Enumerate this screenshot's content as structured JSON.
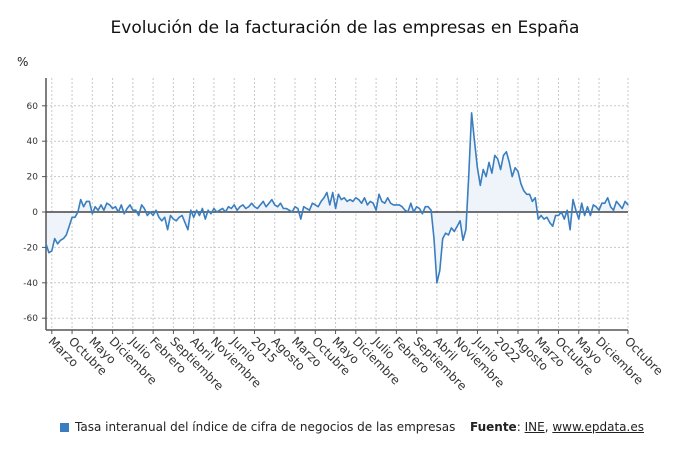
{
  "chart_data": {
    "type": "area",
    "title": "Evolución de la facturación de las empresas en España",
    "ylabel": "%",
    "xlabel": "",
    "ylim": [
      -66,
      76
    ],
    "yticks": [
      60,
      40,
      20,
      0,
      -20,
      -40,
      -60
    ],
    "grid": true,
    "legend_position": "bottom",
    "x_start": "2009-01",
    "frequency": "monthly",
    "xticks": [
      {
        "date": "2009-03",
        "label": "Marzo"
      },
      {
        "date": "2009-10",
        "label": "Octubre"
      },
      {
        "date": "2010-05",
        "label": "Mayo"
      },
      {
        "date": "2010-12",
        "label": "Diciembre"
      },
      {
        "date": "2011-07",
        "label": "Julio"
      },
      {
        "date": "2012-02",
        "label": "Febrero"
      },
      {
        "date": "2012-09",
        "label": "Septiembre"
      },
      {
        "date": "2013-04",
        "label": "Abril"
      },
      {
        "date": "2013-11",
        "label": "Noviembre"
      },
      {
        "date": "2014-06",
        "label": "Junio"
      },
      {
        "date": "2015-01",
        "label": "2015"
      },
      {
        "date": "2015-08",
        "label": "Agosto"
      },
      {
        "date": "2016-03",
        "label": "Marzo"
      },
      {
        "date": "2016-10",
        "label": "Octubre"
      },
      {
        "date": "2017-05",
        "label": "Mayo"
      },
      {
        "date": "2017-12",
        "label": "Diciembre"
      },
      {
        "date": "2018-07",
        "label": "Julio"
      },
      {
        "date": "2019-02",
        "label": "Febrero"
      },
      {
        "date": "2019-09",
        "label": "Septiembre"
      },
      {
        "date": "2020-04",
        "label": "Abril"
      },
      {
        "date": "2020-11",
        "label": "Noviembre"
      },
      {
        "date": "2021-06",
        "label": "Junio"
      },
      {
        "date": "2022-01",
        "label": "2022"
      },
      {
        "date": "2022-08",
        "label": "Agosto"
      },
      {
        "date": "2023-03",
        "label": "Marzo"
      },
      {
        "date": "2023-10",
        "label": "Octubre"
      },
      {
        "date": "2024-05",
        "label": "Mayo"
      },
      {
        "date": "2024-12",
        "label": "Diciembre"
      },
      {
        "date": "2025-10",
        "label": "Octubre"
      }
    ],
    "series": [
      {
        "name": "Tasa interanual del índice de cifra de negocios de las empresas",
        "color": "#3a7ebf",
        "fill": "#eef4fa",
        "values": [
          -18,
          -23,
          -22,
          -15,
          -18,
          -16,
          -15,
          -13,
          -8,
          -3,
          -3,
          0,
          7,
          3,
          6,
          6,
          -1,
          3,
          1,
          4,
          1,
          5,
          4,
          2,
          3,
          0,
          4,
          -1,
          2,
          4,
          1,
          1,
          -2,
          4,
          2,
          -2,
          0,
          -2,
          1,
          -3,
          -5,
          -3,
          -10,
          -2,
          -4,
          -5,
          -3,
          -2,
          -6,
          -10,
          1,
          -3,
          1,
          -2,
          2,
          -4,
          1,
          -1,
          2,
          0,
          1,
          2,
          0,
          3,
          2,
          4,
          1,
          3,
          4,
          2,
          3,
          5,
          3,
          2,
          4,
          6,
          3,
          5,
          7,
          4,
          3,
          5,
          2,
          2,
          1,
          0,
          3,
          2,
          -4,
          3,
          2,
          1,
          5,
          4,
          3,
          6,
          8,
          11,
          4,
          11,
          2,
          10,
          7,
          8,
          6,
          7,
          6,
          8,
          7,
          5,
          8,
          4,
          6,
          5,
          1,
          10,
          6,
          5,
          8,
          5,
          4,
          4,
          4,
          3,
          1,
          0,
          5,
          0,
          3,
          2,
          -1,
          3,
          3,
          1,
          -15,
          -40,
          -33,
          -15,
          -12,
          -13,
          -9,
          -11,
          -8,
          -5,
          -16,
          -10,
          20,
          56,
          40,
          25,
          15,
          24,
          20,
          28,
          22,
          32,
          30,
          24,
          32,
          34,
          28,
          20,
          25,
          23,
          16,
          12,
          10,
          10,
          6,
          8,
          -4,
          -2,
          -4,
          -3,
          -6,
          -8,
          -2,
          -2,
          0,
          -4,
          1,
          -10,
          7,
          1,
          -4,
          5,
          -2,
          3,
          -2,
          4,
          3,
          1,
          5,
          5,
          8,
          3,
          1,
          6,
          4,
          2,
          6,
          4
        ]
      }
    ]
  },
  "footer": {
    "legend_label": "Tasa interanual del índice de cifra de negocios de las empresas",
    "source_label": "Fuente",
    "source_sep": ":",
    "source_ine": "INE",
    "source_comma": ",",
    "source_site": "www.epdata.es"
  }
}
